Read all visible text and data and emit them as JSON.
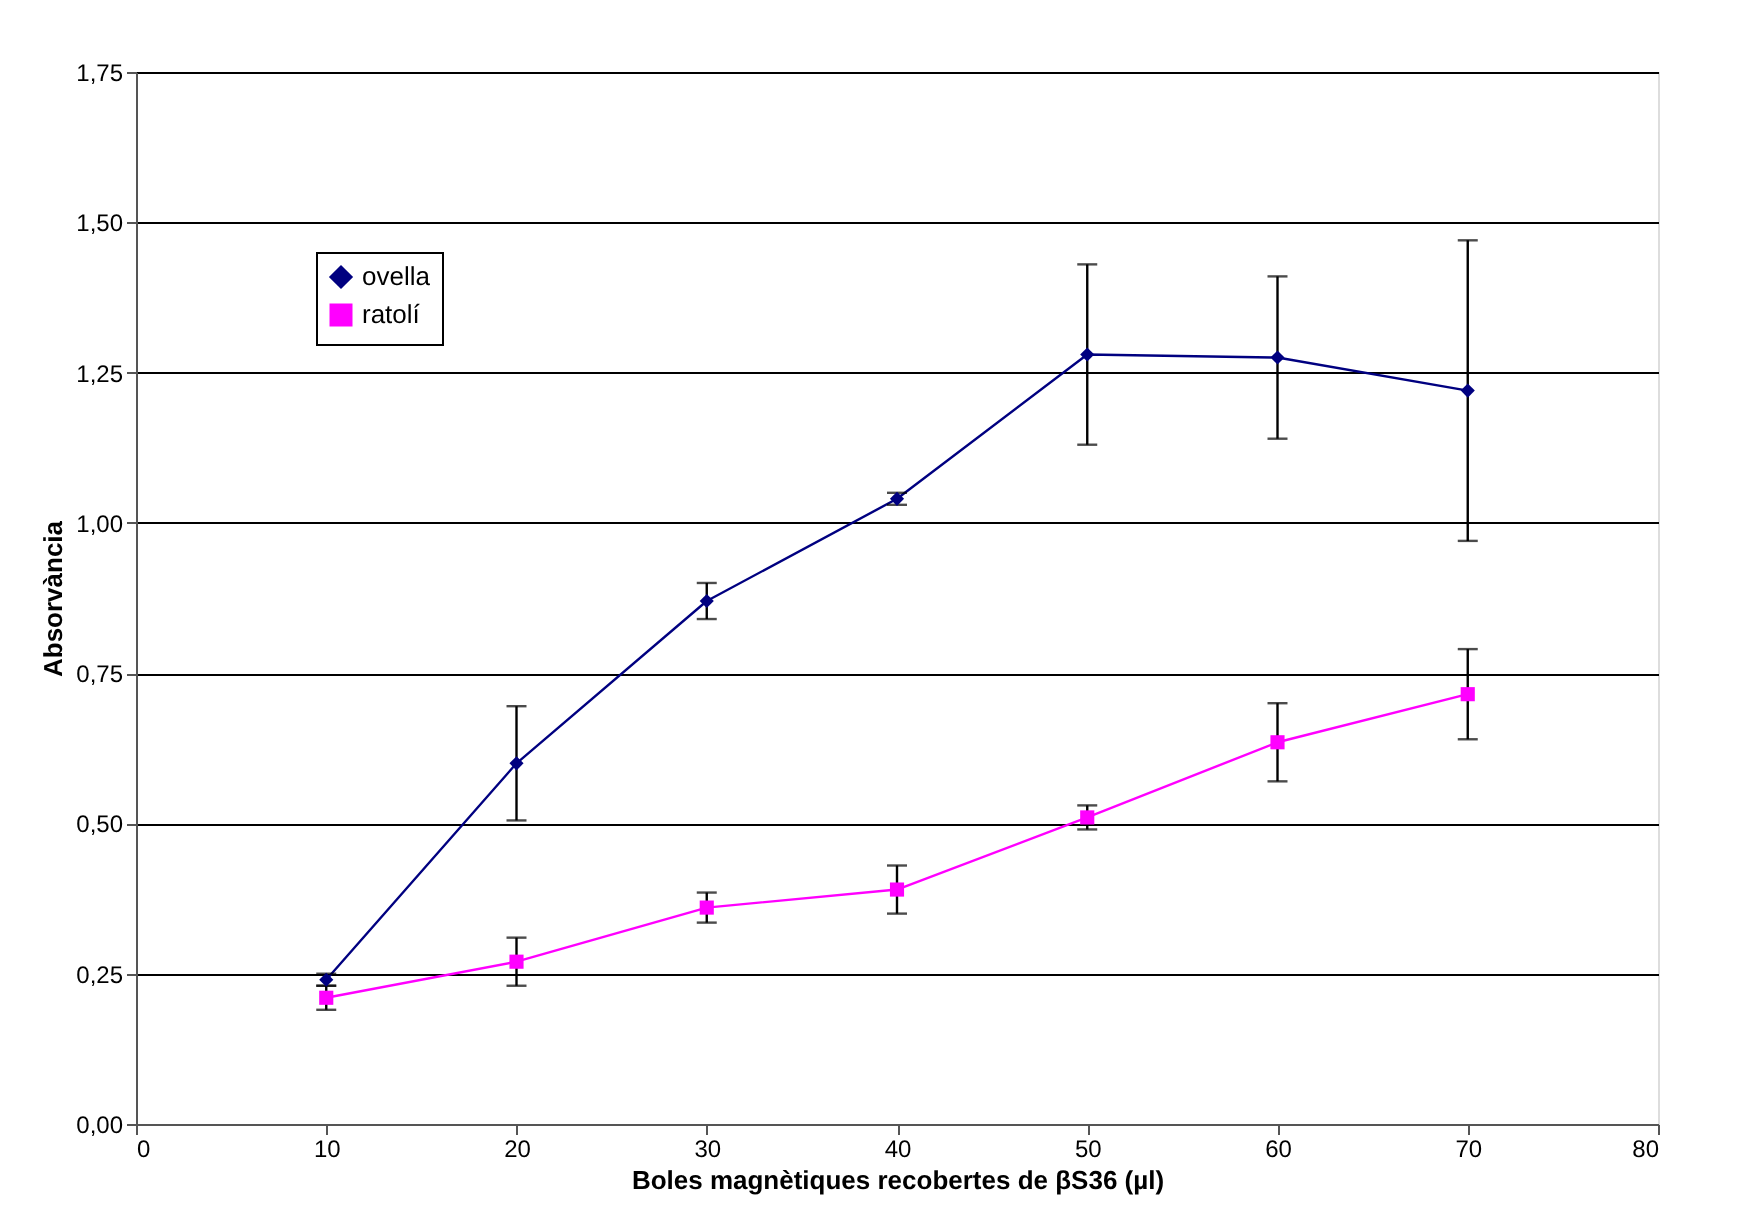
{
  "chart_data": {
    "type": "line",
    "xlabel": "Boles magnètiques recobertes de βS36 (µl)",
    "ylabel": "Absorvància",
    "x": [
      10,
      20,
      30,
      40,
      50,
      60,
      70
    ],
    "series": [
      {
        "name": "ovella",
        "color": "#000080",
        "marker": "diamond",
        "values": [
          0.24,
          0.6,
          0.87,
          1.04,
          1.28,
          1.275,
          1.22
        ],
        "errors": [
          0.01,
          0.095,
          0.03,
          0.01,
          0.15,
          0.135,
          0.25
        ]
      },
      {
        "name": "ratolí",
        "color": "#ff00ff",
        "marker": "square",
        "values": [
          0.21,
          0.27,
          0.36,
          0.39,
          0.51,
          0.635,
          0.715
        ],
        "errors": [
          0.02,
          0.04,
          0.025,
          0.04,
          0.02,
          0.065,
          0.075
        ]
      }
    ],
    "xlim": [
      0,
      80
    ],
    "xticks": [
      0,
      10,
      20,
      30,
      40,
      50,
      60,
      70,
      80
    ],
    "ylim": [
      0,
      1.75
    ],
    "yticks": [
      {
        "value": 0,
        "label": "0,00"
      },
      {
        "value": 0.25,
        "label": "0,25"
      },
      {
        "value": 0.5,
        "label": "0,50"
      },
      {
        "value": 0.75,
        "label": "0,75"
      },
      {
        "value": 1.0,
        "label": "1,00"
      },
      {
        "value": 1.25,
        "label": "1,25"
      },
      {
        "value": 1.5,
        "label": "1,50"
      },
      {
        "value": 1.75,
        "label": "1,75"
      }
    ],
    "grid": "y",
    "legend": "top left",
    "line_style": "solid"
  }
}
